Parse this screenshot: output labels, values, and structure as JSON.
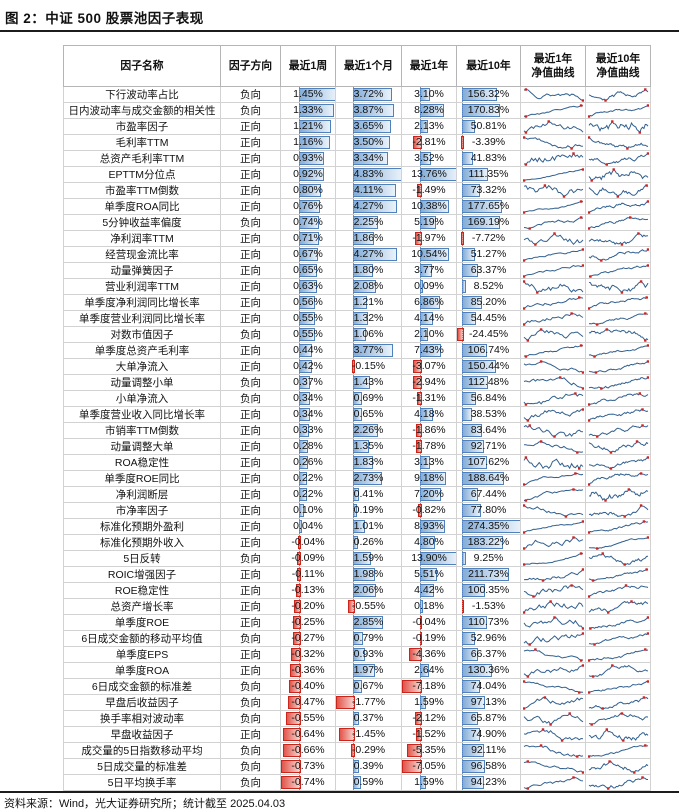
{
  "title": "图 2：中证 500 股票池因子表现",
  "source_note": "资料来源：Wind，光大证券研究所；统计截至 2025.04.03",
  "colors": {
    "bar_positive_border": "#4f81bd",
    "bar_negative_border": "#c9251b",
    "sparkline_line": "#31608f",
    "sparkline_marker": "#cc2222"
  },
  "table": {
    "headers": [
      "因子名称",
      "因子方向",
      "最近1周",
      "最近1个月",
      "最近1年",
      "最近10年",
      "最近1年\n净值曲线",
      "最近10年\n净值曲线"
    ]
  },
  "chart_data": {
    "type": "table",
    "title": "中证500股票池因子表现",
    "unit": "%",
    "columns": [
      "因子名称",
      "因子方向",
      "最近1周",
      "最近1个月",
      "最近1年",
      "最近10年",
      "最近1年净值曲线",
      "最近10年净值曲线"
    ],
    "note": "数值列以数据条形式展示，负值为红色条，正值为蓝色条；净值曲线列为迷你走势图，红点标注高低点",
    "rows": [
      {
        "name": "下行波动率占比",
        "direction": "负向",
        "week1": 1.45,
        "month1": 3.72,
        "year1": 3.1,
        "year10": 156.32
      },
      {
        "name": "日内波动率与成交金额的相关性",
        "direction": "负向",
        "week1": 1.33,
        "month1": 3.87,
        "year1": 8.28,
        "year10": 170.83
      },
      {
        "name": "市盈率因子",
        "direction": "正向",
        "week1": 1.21,
        "month1": 3.65,
        "year1": 2.13,
        "year10": 50.81
      },
      {
        "name": "毛利率TTM",
        "direction": "正向",
        "week1": 1.16,
        "month1": 3.5,
        "year1": -2.81,
        "year10": -3.39
      },
      {
        "name": "总资产毛利率TTM",
        "direction": "正向",
        "week1": 0.93,
        "month1": 3.34,
        "year1": 3.52,
        "year10": 41.83
      },
      {
        "name": "EPTTM分位点",
        "direction": "正向",
        "week1": 0.92,
        "month1": 4.83,
        "year1": 13.76,
        "year10": 111.35
      },
      {
        "name": "市盈率TTM倒数",
        "direction": "正向",
        "week1": 0.8,
        "month1": 4.11,
        "year1": -1.49,
        "year10": 73.32
      },
      {
        "name": "单季度ROA同比",
        "direction": "正向",
        "week1": 0.76,
        "month1": 4.27,
        "year1": 10.38,
        "year10": 177.65
      },
      {
        "name": "5分钟收益率偏度",
        "direction": "负向",
        "week1": 0.74,
        "month1": 2.25,
        "year1": 5.19,
        "year10": 169.19
      },
      {
        "name": "净利润率TTM",
        "direction": "正向",
        "week1": 0.71,
        "month1": 1.86,
        "year1": -1.97,
        "year10": -7.72
      },
      {
        "name": "经营现金流比率",
        "direction": "正向",
        "week1": 0.67,
        "month1": 4.27,
        "year1": 10.54,
        "year10": 51.27
      },
      {
        "name": "动量弹簧因子",
        "direction": "正向",
        "week1": 0.65,
        "month1": 1.8,
        "year1": 3.77,
        "year10": 63.37
      },
      {
        "name": "营业利润率TTM",
        "direction": "正向",
        "week1": 0.63,
        "month1": 2.08,
        "year1": 0.09,
        "year10": 8.52
      },
      {
        "name": "单季度净利润同比增长率",
        "direction": "正向",
        "week1": 0.56,
        "month1": 1.21,
        "year1": 6.86,
        "year10": 85.2
      },
      {
        "name": "单季度营业利润同比增长率",
        "direction": "正向",
        "week1": 0.55,
        "month1": 1.32,
        "year1": 4.14,
        "year10": 54.45
      },
      {
        "name": "对数市值因子",
        "direction": "负向",
        "week1": 0.55,
        "month1": 1.06,
        "year1": 2.1,
        "year10": -24.45
      },
      {
        "name": "单季度总资产毛利率",
        "direction": "正向",
        "week1": 0.44,
        "month1": 3.77,
        "year1": 7.43,
        "year10": 106.74
      },
      {
        "name": "大单净流入",
        "direction": "正向",
        "week1": 0.42,
        "month1": -0.15,
        "year1": -3.07,
        "year10": 150.44
      },
      {
        "name": "动量调整小单",
        "direction": "负向",
        "week1": 0.37,
        "month1": 1.43,
        "year1": -2.94,
        "year10": 112.48
      },
      {
        "name": "小单净流入",
        "direction": "负向",
        "week1": 0.34,
        "month1": 0.69,
        "year1": -1.31,
        "year10": 56.84
      },
      {
        "name": "单季度营业收入同比增长率",
        "direction": "正向",
        "week1": 0.34,
        "month1": 0.65,
        "year1": 4.18,
        "year10": 38.53
      },
      {
        "name": "市销率TTM倒数",
        "direction": "正向",
        "week1": 0.33,
        "month1": 2.26,
        "year1": -1.86,
        "year10": 83.64
      },
      {
        "name": "动量调整大单",
        "direction": "正向",
        "week1": 0.28,
        "month1": 1.35,
        "year1": -1.78,
        "year10": 92.71
      },
      {
        "name": "ROA稳定性",
        "direction": "正向",
        "week1": 0.26,
        "month1": 1.83,
        "year1": 3.13,
        "year10": 107.62
      },
      {
        "name": "单季度ROE同比",
        "direction": "正向",
        "week1": 0.22,
        "month1": 2.73,
        "year1": 9.18,
        "year10": 188.64
      },
      {
        "name": "净利润断层",
        "direction": "正向",
        "week1": 0.22,
        "month1": 0.41,
        "year1": 7.2,
        "year10": 67.44
      },
      {
        "name": "市净率因子",
        "direction": "正向",
        "week1": 0.1,
        "month1": 0.19,
        "year1": -0.82,
        "year10": 77.8
      },
      {
        "name": "标准化预期外盈利",
        "direction": "正向",
        "week1": 0.04,
        "month1": 1.01,
        "year1": 8.93,
        "year10": 274.35
      },
      {
        "name": "标准化预期外收入",
        "direction": "正向",
        "week1": -0.04,
        "month1": 0.26,
        "year1": 4.8,
        "year10": 183.22
      },
      {
        "name": "5日反转",
        "direction": "负向",
        "week1": -0.09,
        "month1": 1.59,
        "year1": 13.9,
        "year10": 9.25
      },
      {
        "name": "ROIC增强因子",
        "direction": "正向",
        "week1": -0.11,
        "month1": 1.98,
        "year1": 5.51,
        "year10": 211.73
      },
      {
        "name": "ROE稳定性",
        "direction": "正向",
        "week1": -0.13,
        "month1": 2.06,
        "year1": 4.42,
        "year10": 100.35
      },
      {
        "name": "总资产增长率",
        "direction": "正向",
        "week1": -0.2,
        "month1": -0.55,
        "year1": 0.18,
        "year10": -1.53
      },
      {
        "name": "单季度ROE",
        "direction": "正向",
        "week1": -0.25,
        "month1": 2.85,
        "year1": -0.04,
        "year10": 110.73
      },
      {
        "name": "6日成交金额的移动平均值",
        "direction": "负向",
        "week1": -0.27,
        "month1": 0.79,
        "year1": -0.19,
        "year10": 52.96
      },
      {
        "name": "单季度EPS",
        "direction": "正向",
        "week1": -0.32,
        "month1": 0.93,
        "year1": -4.36,
        "year10": 66.37
      },
      {
        "name": "单季度ROA",
        "direction": "正向",
        "week1": -0.36,
        "month1": 1.97,
        "year1": 2.64,
        "year10": 130.36
      },
      {
        "name": "6日成交金额的标准差",
        "direction": "负向",
        "week1": -0.4,
        "month1": 0.67,
        "year1": -7.18,
        "year10": 74.04
      },
      {
        "name": "早盘后收益因子",
        "direction": "负向",
        "week1": -0.47,
        "month1": -1.77,
        "year1": 1.59,
        "year10": 97.13
      },
      {
        "name": "换手率相对波动率",
        "direction": "负向",
        "week1": -0.55,
        "month1": 0.37,
        "year1": -2.12,
        "year10": 65.87
      },
      {
        "name": "早盘收益因子",
        "direction": "正向",
        "week1": -0.64,
        "month1": -1.45,
        "year1": -1.52,
        "year10": 74.9
      },
      {
        "name": "成交量的5日指数移动平均",
        "direction": "负向",
        "week1": -0.66,
        "month1": -0.29,
        "year1": -5.35,
        "year10": 92.11
      },
      {
        "name": "5日成交量的标准差",
        "direction": "负向",
        "week1": -0.73,
        "month1": 0.39,
        "year1": -7.05,
        "year10": 96.58
      },
      {
        "name": "5日平均换手率",
        "direction": "负向",
        "week1": -0.74,
        "month1": 0.59,
        "year1": 1.59,
        "year10": 94.23
      }
    ]
  }
}
